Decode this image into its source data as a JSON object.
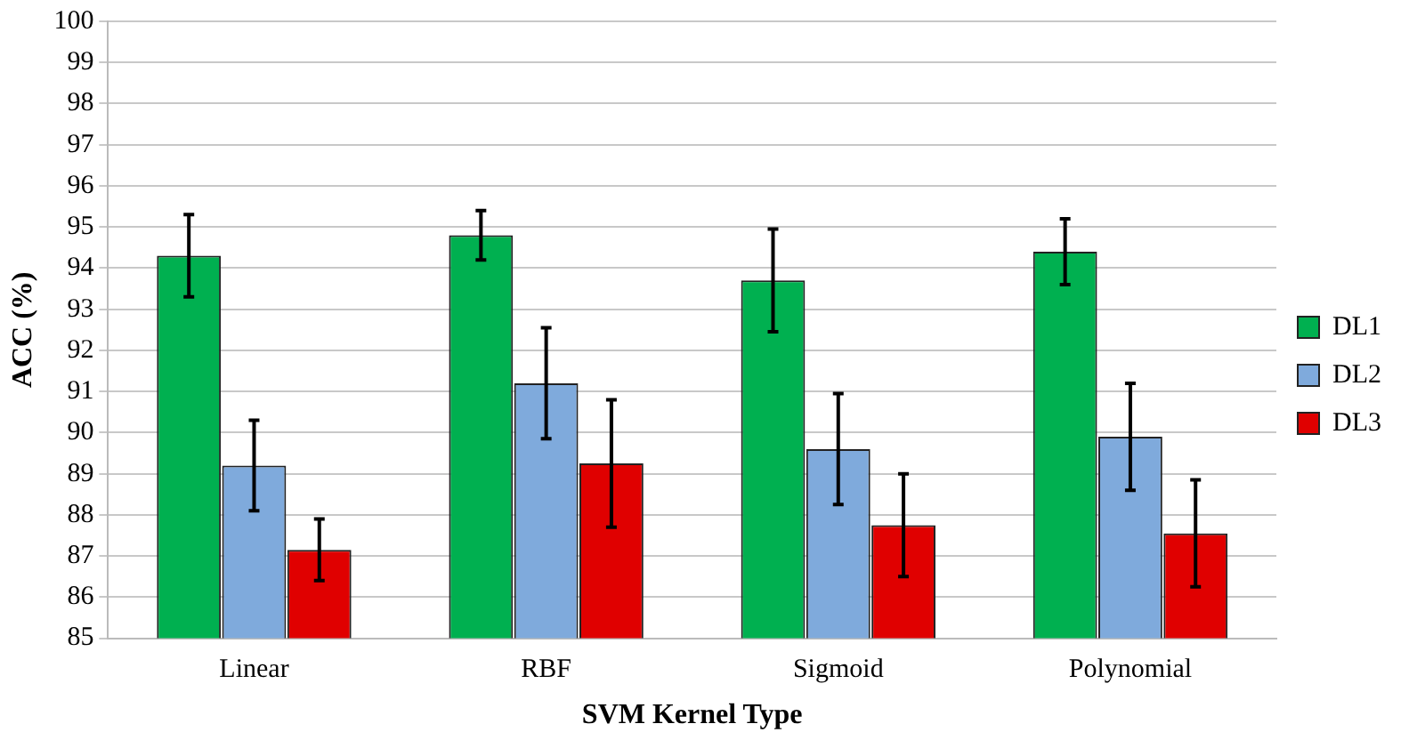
{
  "chart_data": {
    "type": "bar",
    "xlabel": "SVM Kernel Type",
    "ylabel": "ACC (%)",
    "categories": [
      "Linear",
      "RBF",
      "Sigmoid",
      "Polynomial"
    ],
    "series": [
      {
        "name": "DL1",
        "color": "#00b050",
        "values": [
          94.3,
          94.8,
          93.7,
          94.4
        ],
        "errors": [
          1.0,
          0.6,
          1.25,
          0.8
        ]
      },
      {
        "name": "DL2",
        "color": "#7faadc",
        "values": [
          89.2,
          91.2,
          89.6,
          89.9
        ],
        "errors": [
          1.1,
          1.35,
          1.35,
          1.3
        ]
      },
      {
        "name": "DL3",
        "color": "#e00000",
        "values": [
          87.15,
          89.25,
          87.75,
          87.55
        ],
        "errors": [
          0.75,
          1.55,
          1.25,
          1.3
        ]
      }
    ],
    "ylim": [
      85,
      100
    ],
    "yticks": [
      85,
      86,
      87,
      88,
      89,
      90,
      91,
      92,
      93,
      94,
      95,
      96,
      97,
      98,
      99,
      100
    ],
    "grid": "y",
    "legend": "right"
  }
}
